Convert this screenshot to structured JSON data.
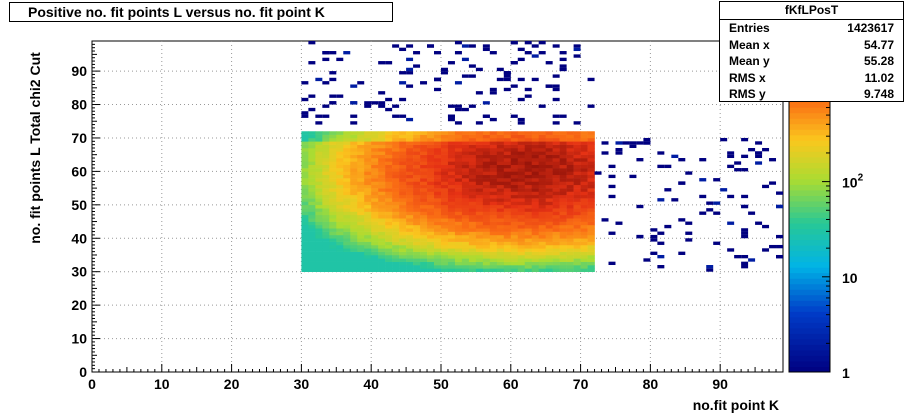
{
  "title": "Positive no. fit points L versus no. fit point K",
  "stats": {
    "name": "fKfLPosT",
    "rows": [
      {
        "label": "Entries",
        "value": "1423617"
      },
      {
        "label": "Mean x",
        "value": "54.77"
      },
      {
        "label": "Mean y",
        "value": "55.28"
      },
      {
        "label": "RMS x",
        "value": "11.02"
      },
      {
        "label": "RMS y",
        "value": "9.748"
      }
    ]
  },
  "chart_data": {
    "type": "heatmap",
    "title": "Positive no. fit points L versus no. fit point K",
    "xlabel": "no.fit point K",
    "ylabel": "no. fit points  L   Total chi2 Cut",
    "xlim": [
      0,
      99
    ],
    "ylim": [
      0,
      99
    ],
    "x_ticks": [
      0,
      10,
      20,
      30,
      40,
      50,
      60,
      70,
      80,
      90
    ],
    "y_ticks": [
      0,
      10,
      20,
      30,
      40,
      50,
      60,
      70,
      80,
      90
    ],
    "z_scale": "log",
    "z_range": [
      1,
      3000
    ],
    "z_tick_labels": [
      {
        "value": 1,
        "label": "1"
      },
      {
        "value": 10,
        "label": "10"
      },
      {
        "value": 100,
        "label": "10",
        "sup": "2"
      }
    ],
    "grid": true,
    "dense_region": {
      "x_range": [
        30,
        72
      ],
      "y_range": [
        30,
        72
      ],
      "peak": [
        62,
        60
      ]
    }
  }
}
